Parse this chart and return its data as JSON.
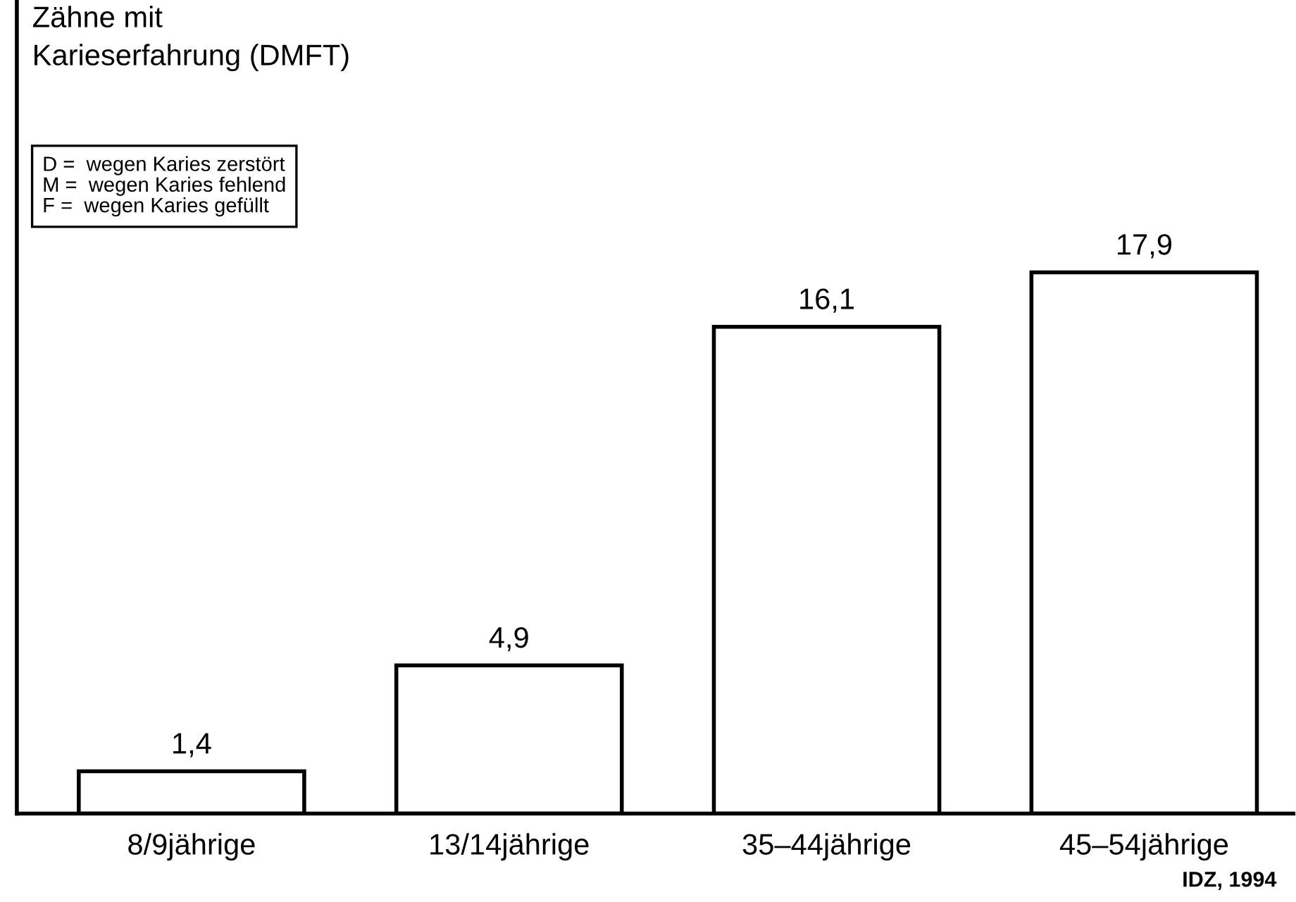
{
  "chart_data": {
    "type": "bar",
    "categories": [
      "8/9jährige",
      "13/14jährige",
      "35–44jährige",
      "45–54jährige"
    ],
    "values": [
      1.4,
      4.9,
      16.1,
      17.9
    ],
    "value_labels": [
      "1,4",
      "4,9",
      "16,1",
      "17,9"
    ],
    "color": "#ffffff",
    "annotations": [
      "Zähne mit\nKarieserfahrung (DMFT)",
      "D =  wegen Karies zerstört\nM =  wegen Karies fehlend\nF =  wegen Karies gefüllt",
      "IDZ, 1994"
    ]
  }
}
